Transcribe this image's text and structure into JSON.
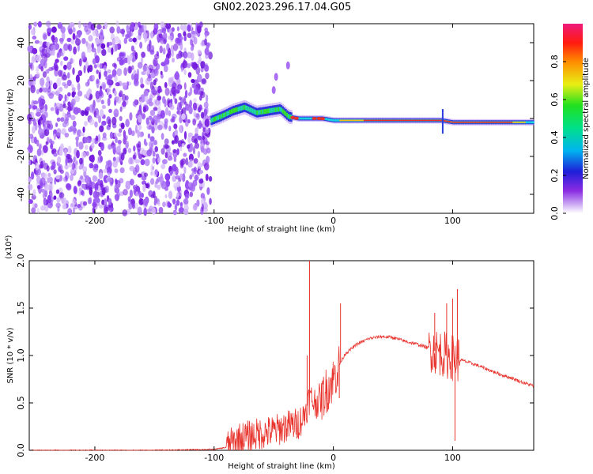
{
  "title": "GN02.2023.296.17.04.G05",
  "chart_data": [
    {
      "type": "heatmap",
      "xlabel": "Height of straight line (km)",
      "ylabel": "Frequency (Hz)",
      "xlim": [
        -255,
        168
      ],
      "ylim": [
        -50,
        50
      ],
      "xticks": [
        -200,
        -100,
        0,
        100
      ],
      "yticks": [
        -40,
        -20,
        0,
        20,
        40
      ],
      "noise_region_x": [
        -255,
        -103
      ],
      "signal_track": {
        "x": [
          -103,
          -95,
          -85,
          -75,
          -65,
          -55,
          -45,
          -38,
          -30,
          -20,
          -10,
          0,
          20,
          40,
          60,
          80,
          90,
          100,
          120,
          140,
          168
        ],
        "freq": [
          -1,
          1,
          4,
          6,
          3,
          4,
          5,
          1,
          0,
          0,
          0,
          -1,
          -1,
          -1,
          -1,
          -1,
          -1,
          -2,
          -2,
          -2,
          -2
        ]
      },
      "colorbar": {
        "label": "Normalized spectral amplitude",
        "range": [
          0,
          1
        ],
        "ticks": [
          0.0,
          0.2,
          0.4,
          0.6,
          0.8
        ],
        "tick_labels": [
          "0.0",
          "0.2",
          "0.4",
          "0.6",
          "0.8"
        ]
      }
    },
    {
      "type": "line",
      "xlabel": "Height of straight line (km)",
      "ylabel": "SNR (10 * v/v)",
      "y_multiplier": "(x10⁴)",
      "xlim": [
        -255,
        168
      ],
      "ylim": [
        0,
        2.0
      ],
      "xticks": [
        -200,
        -100,
        0,
        100
      ],
      "yticks": [
        0.0,
        0.5,
        1.0,
        1.5,
        2.0
      ],
      "ytick_labels": [
        "0.0",
        "0.5",
        "1.0",
        "1.5",
        "2.0"
      ],
      "series": [
        {
          "color": "#e8332c",
          "x": [
            -255,
            -200,
            -150,
            -100,
            -90,
            -80,
            -70,
            -60,
            -50,
            -40,
            -30,
            -25,
            -20,
            -15,
            -10,
            -5,
            0,
            5,
            10,
            20,
            30,
            40,
            50,
            60,
            70,
            80,
            85,
            90,
            95,
            100,
            105,
            110,
            120,
            130,
            140,
            150,
            160,
            168
          ],
          "values": [
            0.0,
            0.0,
            0.0,
            0.01,
            0.03,
            0.12,
            0.15,
            0.18,
            0.2,
            0.25,
            0.28,
            0.35,
            0.55,
            0.5,
            0.55,
            0.65,
            0.75,
            0.9,
            1.02,
            1.12,
            1.18,
            1.2,
            1.19,
            1.15,
            1.12,
            1.08,
            1.05,
            1.03,
            1.0,
            0.98,
            0.96,
            0.94,
            0.9,
            0.85,
            0.8,
            0.76,
            0.71,
            0.68
          ]
        }
      ],
      "spikes": [
        {
          "x": -20,
          "y": 2.0
        },
        {
          "x": -22,
          "y": 1.0
        },
        {
          "x": 6,
          "y": 1.55
        },
        {
          "x": 5,
          "y": 0.55
        },
        {
          "x": 85,
          "y": 1.45
        },
        {
          "x": 95,
          "y": 1.55
        },
        {
          "x": 100,
          "y": 1.6
        },
        {
          "x": 102,
          "y": 0.1
        },
        {
          "x": 104,
          "y": 1.7
        }
      ]
    }
  ]
}
